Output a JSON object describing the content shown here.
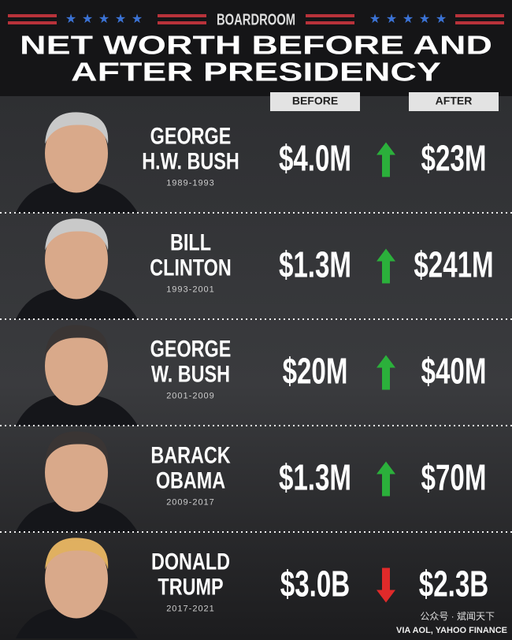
{
  "header": {
    "brand": "BOARDROOM",
    "title_lines": [
      "NET WORTH BEFORE AND",
      "AFTER PRESIDENCY"
    ]
  },
  "columns": {
    "before": "BEFORE",
    "after": "AFTER"
  },
  "rows": [
    {
      "name_lines": [
        "GEORGE",
        "H.W. BUSH"
      ],
      "years": "1989-1993",
      "before": "$4.0M",
      "after": "$23M",
      "direction": "up"
    },
    {
      "name_lines": [
        "BILL",
        "CLINTON"
      ],
      "years": "1993-2001",
      "before": "$1.3M",
      "after": "$241M",
      "direction": "up"
    },
    {
      "name_lines": [
        "GEORGE",
        "W. BUSH"
      ],
      "years": "2001-2009",
      "before": "$20M",
      "after": "$40M",
      "direction": "up"
    },
    {
      "name_lines": [
        "BARACK",
        "OBAMA"
      ],
      "years": "2009-2017",
      "before": "$1.3M",
      "after": "$70M",
      "direction": "up"
    },
    {
      "name_lines": [
        "DONALD",
        "TRUMP"
      ],
      "years": "2017-2021",
      "before": "$3.0B",
      "after": "$2.3B",
      "direction": "down"
    }
  ],
  "footer": {
    "source": "VIA AOL, YAHOO FINANCE",
    "watermark": "公众号 · 斌闻天下"
  }
}
